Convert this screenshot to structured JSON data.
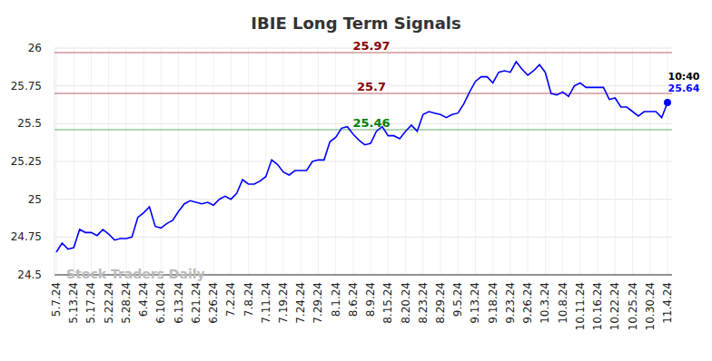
{
  "chart_data": {
    "type": "line",
    "title": "IBIE Long Term Signals",
    "watermark": "Stock Traders Daily",
    "categories": [
      "5.7.24",
      null,
      null,
      "5.13.24",
      null,
      null,
      "5.17.24",
      null,
      null,
      "5.22.24",
      null,
      null,
      "5.28.24",
      null,
      null,
      "6.4.24",
      null,
      null,
      "6.10.24",
      null,
      null,
      "6.13.24",
      null,
      null,
      "6.21.24",
      null,
      null,
      "6.26.24",
      null,
      null,
      "7.2.24",
      null,
      null,
      "7.8.24",
      null,
      null,
      "7.11.24",
      null,
      null,
      "7.19.24",
      null,
      null,
      "7.24.24",
      null,
      null,
      "7.29.24",
      null,
      null,
      "8.1.24",
      null,
      null,
      "8.6.24",
      null,
      null,
      "8.9.24",
      null,
      null,
      "8.15.24",
      null,
      null,
      "8.20.24",
      null,
      null,
      "8.23.24",
      null,
      null,
      "8.29.24",
      null,
      null,
      "9.5.24",
      null,
      null,
      "9.13.24",
      null,
      null,
      "9.18.24",
      null,
      null,
      "9.23.24",
      null,
      null,
      "9.26.24",
      null,
      null,
      "10.3.24",
      null,
      null,
      "10.8.24",
      null,
      null,
      "10.11.24",
      null,
      null,
      "10.16.24",
      null,
      null,
      "10.22.24",
      null,
      null,
      "10.25.24",
      null,
      null,
      "10.30.24",
      null,
      null,
      "11.4.24"
    ],
    "values": [
      24.65,
      24.71,
      24.67,
      24.68,
      24.8,
      24.78,
      24.78,
      24.76,
      24.8,
      24.77,
      24.73,
      24.74,
      24.74,
      24.75,
      24.88,
      24.91,
      24.95,
      24.82,
      24.81,
      24.84,
      24.86,
      24.92,
      24.97,
      24.99,
      24.98,
      24.97,
      24.98,
      24.96,
      25.0,
      25.02,
      25.0,
      25.04,
      25.13,
      25.1,
      25.1,
      25.12,
      25.15,
      25.26,
      25.23,
      25.18,
      25.16,
      25.19,
      25.19,
      25.19,
      25.25,
      25.26,
      25.26,
      25.38,
      25.41,
      25.47,
      25.48,
      25.43,
      25.39,
      25.36,
      25.37,
      25.45,
      25.48,
      25.42,
      25.42,
      25.4,
      25.45,
      25.49,
      25.45,
      25.56,
      25.58,
      25.57,
      25.56,
      25.54,
      25.56,
      25.57,
      25.63,
      25.71,
      25.78,
      25.81,
      25.81,
      25.77,
      25.84,
      25.85,
      25.84,
      25.91,
      25.86,
      25.82,
      25.85,
      25.89,
      25.84,
      25.7,
      25.69,
      25.71,
      25.68,
      25.75,
      25.77,
      25.74,
      25.74,
      25.74,
      25.74,
      25.66,
      25.67,
      25.61,
      25.61,
      25.58,
      25.55,
      25.58,
      25.58,
      25.58,
      25.54,
      25.64
    ],
    "color": "#0000ff",
    "ylim": [
      24.5,
      26
    ],
    "yticks": [
      24.5,
      24.75,
      25,
      25.25,
      25.5,
      25.75,
      26
    ],
    "grid": true,
    "reference_lines": [
      {
        "value": 25.97,
        "color": "#8b0000"
      },
      {
        "value": 25.7,
        "color": "#8b0000"
      },
      {
        "value": 25.46,
        "color": "#008000"
      }
    ],
    "annotations": [
      {
        "text": "10:40"
      }
    ]
  }
}
